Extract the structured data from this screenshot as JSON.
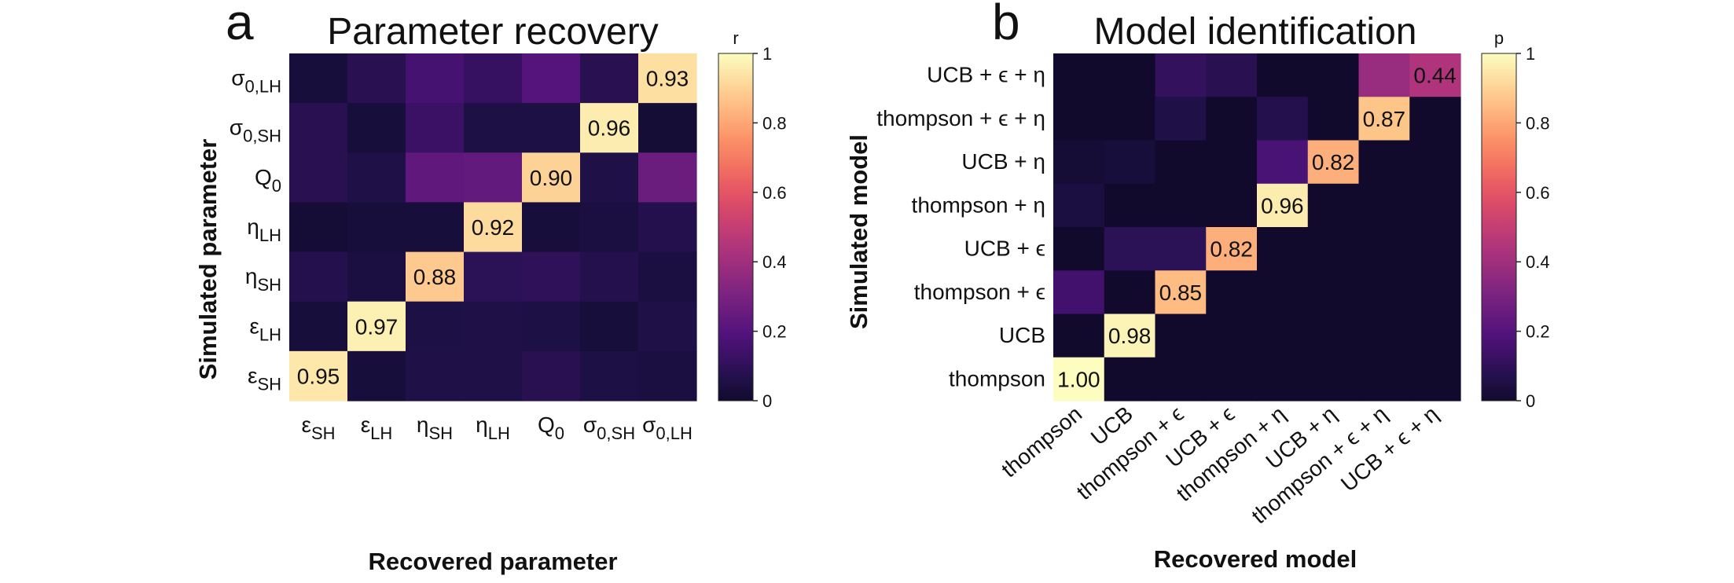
{
  "figure": {
    "panel_letters": [
      "a",
      "b"
    ]
  },
  "chart_data": [
    {
      "type": "heatmap",
      "title": "Parameter recovery",
      "xlabel": "Recovered parameter",
      "ylabel": "Simulated parameter",
      "colorbar": {
        "label": "r",
        "range": [
          0,
          1
        ],
        "ticks": [
          "0",
          "0.2",
          "0.4",
          "0.6",
          "0.8",
          "1"
        ]
      },
      "colormap": "magma",
      "x_tick_labels": [
        {
          "base": "ε",
          "sub": "SH"
        },
        {
          "base": "ε",
          "sub": "LH"
        },
        {
          "base": "η",
          "sub": "SH"
        },
        {
          "base": "η",
          "sub": "LH"
        },
        {
          "base": "Q",
          "sub": "0"
        },
        {
          "base": "σ",
          "sub": "0,SH"
        },
        {
          "base": "σ",
          "sub": "0,LH"
        }
      ],
      "y_tick_labels_top_to_bottom": [
        {
          "base": "σ",
          "sub": "0,LH"
        },
        {
          "base": "σ",
          "sub": "0,SH"
        },
        {
          "base": "Q",
          "sub": "0"
        },
        {
          "base": "η",
          "sub": "LH"
        },
        {
          "base": "η",
          "sub": "SH"
        },
        {
          "base": "ε",
          "sub": "LH"
        },
        {
          "base": "ε",
          "sub": "SH"
        }
      ],
      "values_rows_top_to_bottom": [
        [
          0.03,
          0.08,
          0.16,
          0.12,
          0.2,
          0.08,
          0.93
        ],
        [
          0.08,
          0.03,
          0.13,
          0.05,
          0.05,
          0.96,
          0.02
        ],
        [
          0.08,
          0.06,
          0.23,
          0.24,
          0.9,
          0.06,
          0.26
        ],
        [
          0.02,
          0.03,
          0.03,
          0.92,
          0.03,
          0.04,
          0.07
        ],
        [
          0.07,
          0.04,
          0.88,
          0.09,
          0.1,
          0.07,
          0.04
        ],
        [
          0.03,
          0.97,
          0.05,
          0.06,
          0.05,
          0.03,
          0.06
        ],
        [
          0.95,
          0.03,
          0.06,
          0.06,
          0.08,
          0.05,
          0.04
        ]
      ],
      "annotations_rows_top_to_bottom": [
        [
          "",
          "",
          "",
          "",
          "",
          "",
          "0.93"
        ],
        [
          "",
          "",
          "",
          "",
          "",
          "0.96",
          ""
        ],
        [
          "",
          "",
          "",
          "",
          "0.90",
          "",
          ""
        ],
        [
          "",
          "",
          "",
          "0.92",
          "",
          "",
          ""
        ],
        [
          "",
          "",
          "0.88",
          "",
          "",
          "",
          ""
        ],
        [
          "",
          "0.97",
          "",
          "",
          "",
          "",
          ""
        ],
        [
          "0.95",
          "",
          "",
          "",
          "",
          "",
          ""
        ]
      ]
    },
    {
      "type": "heatmap",
      "title": "Model identification",
      "xlabel": "Recovered model",
      "ylabel": "Simulated model",
      "colorbar": {
        "label": "p",
        "range": [
          0,
          1
        ],
        "ticks": [
          "0",
          "0.2",
          "0.4",
          "0.6",
          "0.8",
          "1"
        ]
      },
      "colormap": "magma",
      "x_tick_labels": [
        "thompson",
        "UCB",
        "thompson + ϵ",
        "UCB + ϵ",
        "thompson + η",
        "UCB + η",
        "thompson + ϵ + η",
        "UCB + ϵ + η"
      ],
      "y_tick_labels_top_to_bottom": [
        "UCB + ϵ + η",
        "thompson + ϵ + η",
        "UCB + η",
        "thompson + η",
        "UCB + ϵ",
        "thompson + ϵ",
        "UCB",
        "thompson"
      ],
      "values_rows_top_to_bottom": [
        [
          0.0,
          0.0,
          0.11,
          0.08,
          0.0,
          0.0,
          0.38,
          0.44
        ],
        [
          0.0,
          0.0,
          0.06,
          0.0,
          0.07,
          0.0,
          0.87,
          0.0
        ],
        [
          0.02,
          0.03,
          0.0,
          0.0,
          0.17,
          0.82,
          0.0,
          0.0
        ],
        [
          0.04,
          0.0,
          0.0,
          0.0,
          0.96,
          0.0,
          0.0,
          0.0
        ],
        [
          0.0,
          0.09,
          0.09,
          0.82,
          0.0,
          0.0,
          0.0,
          0.0
        ],
        [
          0.15,
          0.0,
          0.85,
          0.0,
          0.0,
          0.0,
          0.0,
          0.0
        ],
        [
          0.0,
          0.98,
          0.0,
          0.0,
          0.0,
          0.0,
          0.0,
          0.0
        ],
        [
          1.0,
          0.0,
          0.0,
          0.0,
          0.0,
          0.0,
          0.0,
          0.0
        ]
      ],
      "annotations_rows_top_to_bottom": [
        [
          "",
          "",
          "",
          "",
          "",
          "",
          "",
          "0.44"
        ],
        [
          "",
          "",
          "",
          "",
          "",
          "",
          "0.87",
          ""
        ],
        [
          "",
          "",
          "",
          "",
          "",
          "0.82",
          "",
          ""
        ],
        [
          "",
          "",
          "",
          "",
          "0.96",
          "",
          "",
          ""
        ],
        [
          "",
          "",
          "",
          "0.82",
          "",
          "",
          "",
          ""
        ],
        [
          "",
          "",
          "0.85",
          "",
          "",
          "",
          "",
          ""
        ],
        [
          "",
          "0.98",
          "",
          "",
          "",
          "",
          "",
          ""
        ],
        [
          "1.00",
          "",
          "",
          "",
          "",
          "",
          "",
          ""
        ]
      ]
    }
  ]
}
